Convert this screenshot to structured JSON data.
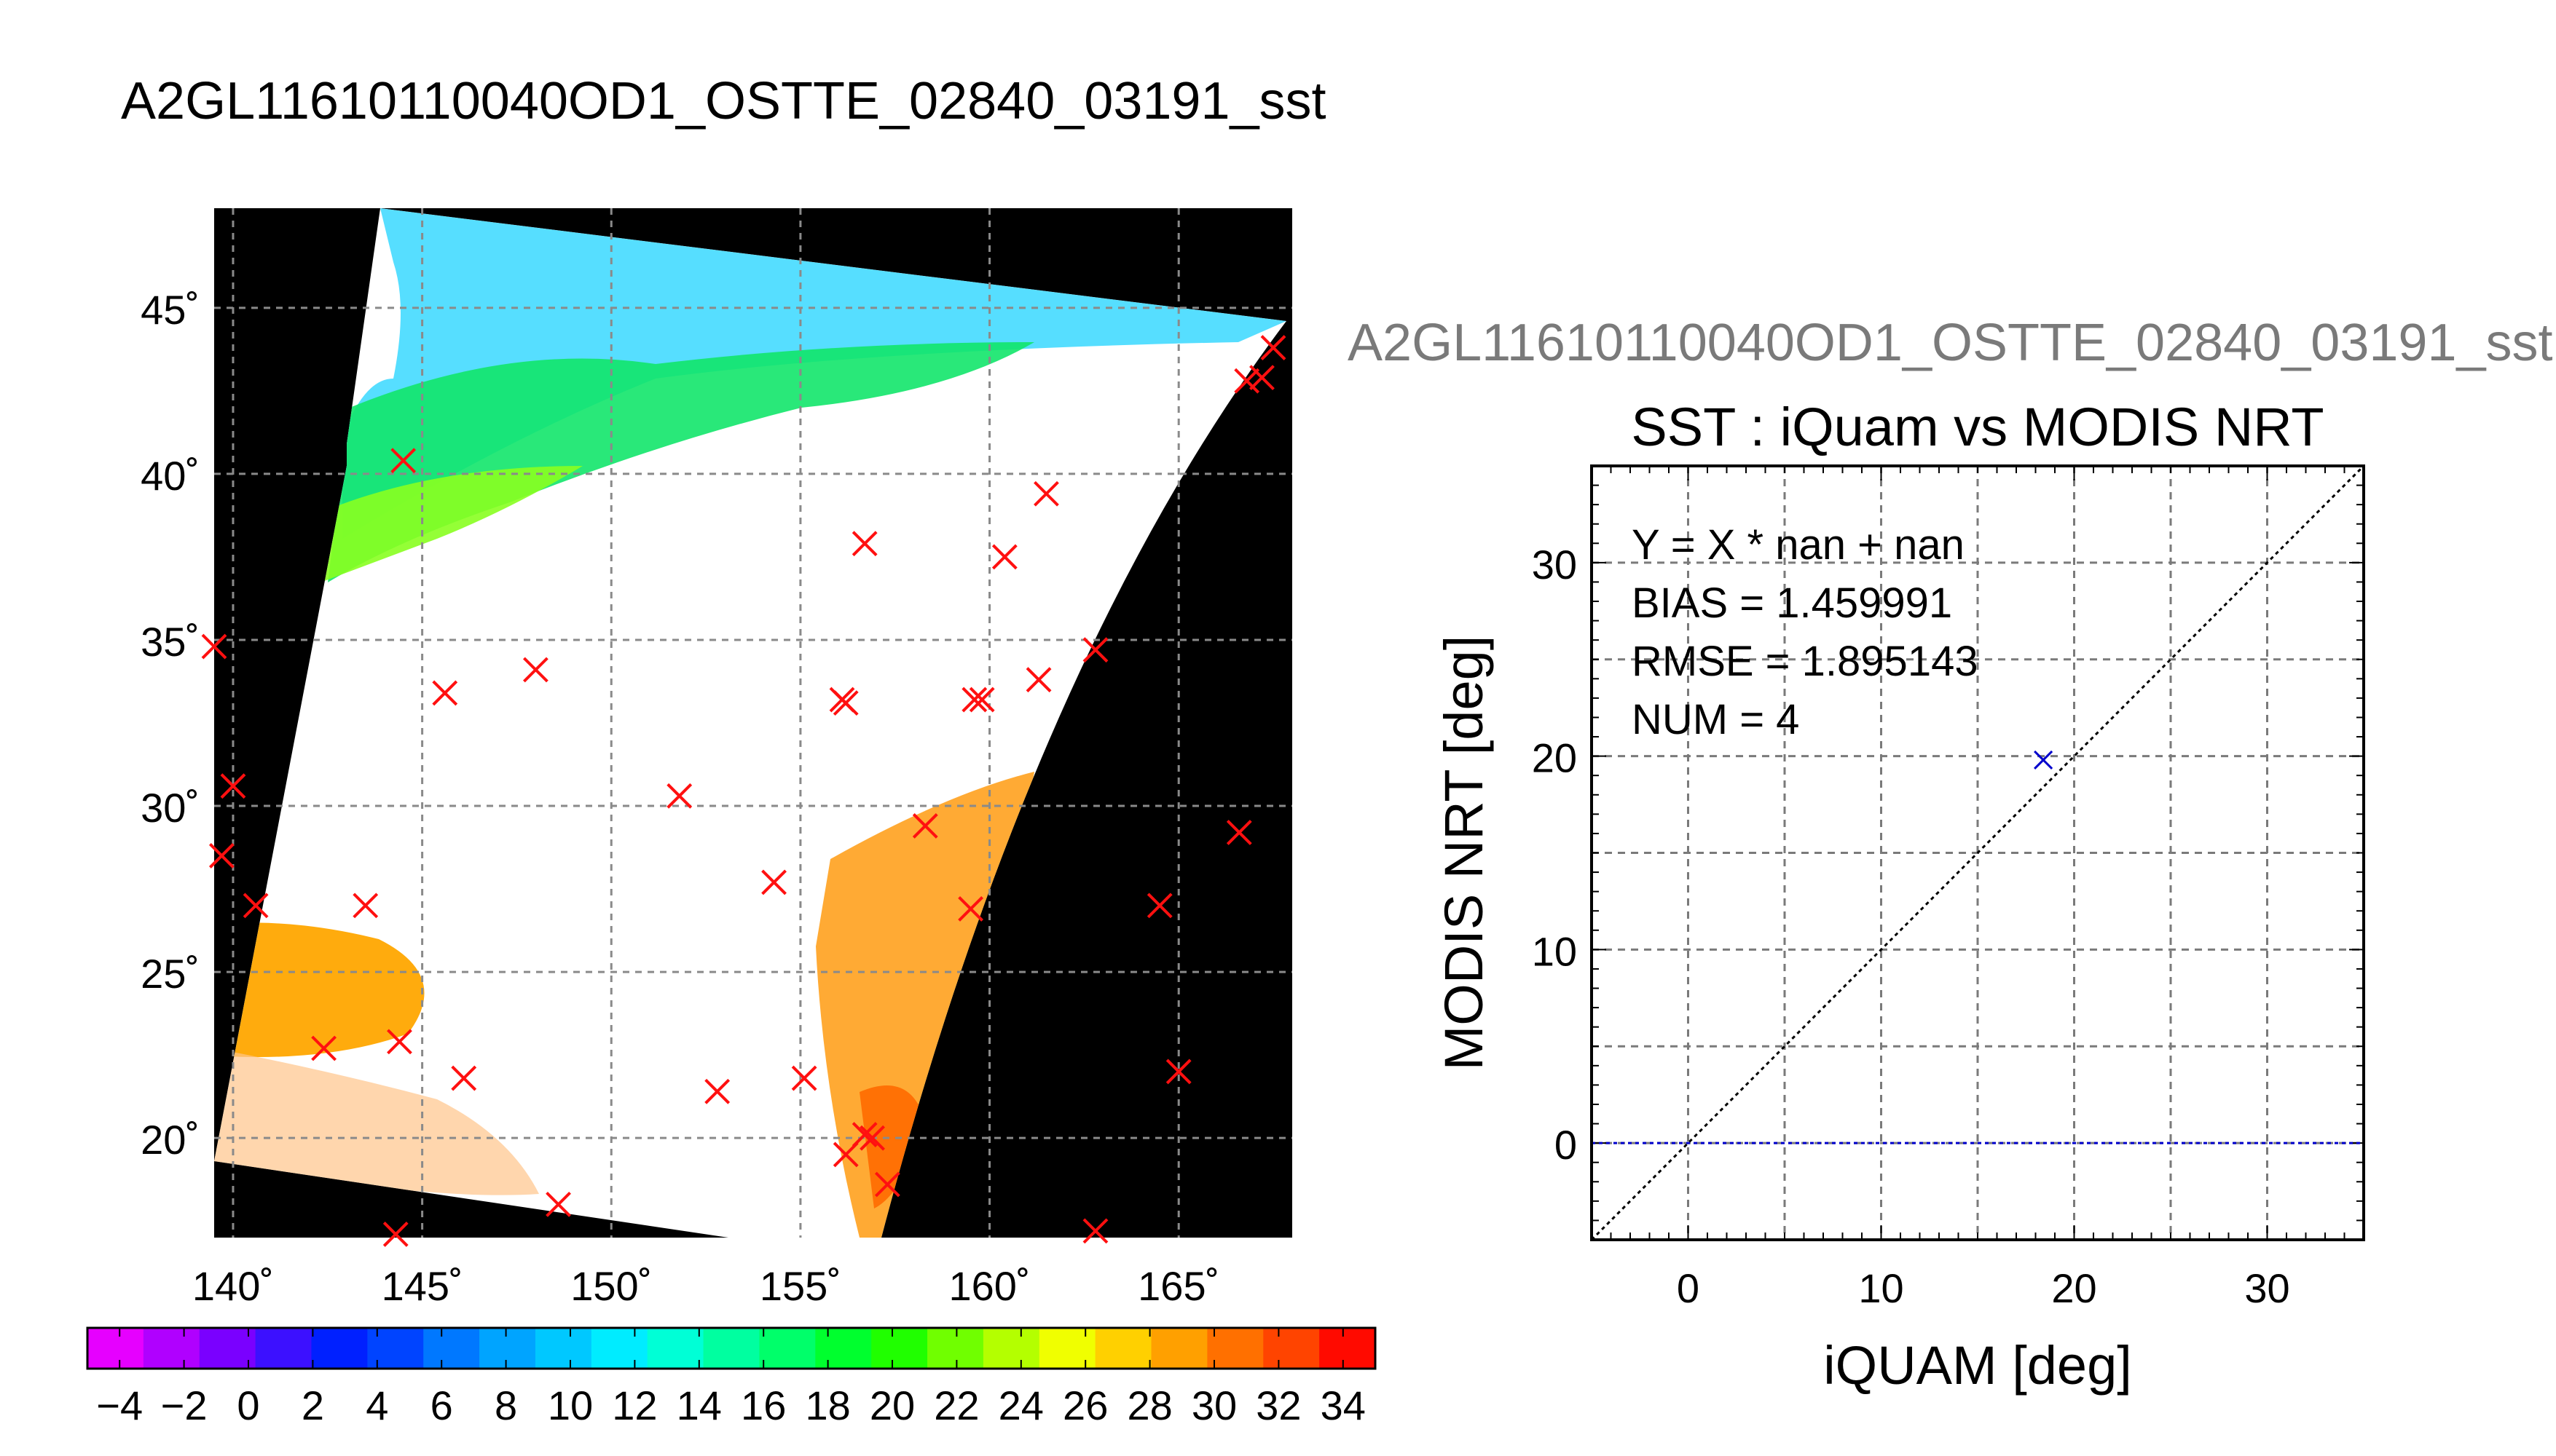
{
  "map_panel": {
    "title": "A2GL11610110040OD1_OSTTE_02840_03191_sst",
    "lat_ticks": [
      "20˚",
      "25˚",
      "30˚",
      "35˚",
      "40˚",
      "45˚"
    ],
    "lon_ticks": [
      "140˚",
      "145˚",
      "150˚",
      "155˚",
      "160˚",
      "165˚"
    ],
    "markers": [
      [
        144.5,
        40.4
      ],
      [
        145.6,
        33.4
      ],
      [
        148,
        34.1
      ],
      [
        151.8,
        30.3
      ],
      [
        156.7,
        37.9
      ],
      [
        160.4,
        37.5
      ],
      [
        161.5,
        39.4
      ],
      [
        156.1,
        33.2
      ],
      [
        156.2,
        33.1
      ],
      [
        159.8,
        33.2
      ],
      [
        159.6,
        33.2
      ],
      [
        161.3,
        33.8
      ],
      [
        162.8,
        34.7
      ],
      [
        139.5,
        34.8
      ],
      [
        140,
        30.6
      ],
      [
        139.7,
        28.5
      ],
      [
        140.6,
        27
      ],
      [
        143.5,
        27
      ],
      [
        142.4,
        22.7
      ],
      [
        144.4,
        22.9
      ],
      [
        146.1,
        21.8
      ],
      [
        152.8,
        21.4
      ],
      [
        154.3,
        27.7
      ],
      [
        155.1,
        21.8
      ],
      [
        156.2,
        19.5
      ],
      [
        156.7,
        20.1
      ],
      [
        156.9,
        20
      ],
      [
        157.3,
        18.6
      ],
      [
        158.3,
        29.4
      ],
      [
        159.5,
        26.9
      ],
      [
        144.3,
        17.1
      ],
      [
        148.6,
        18
      ],
      [
        162.8,
        17.2
      ],
      [
        164.5,
        27
      ],
      [
        165,
        22
      ],
      [
        166.6,
        29.2
      ],
      [
        166.8,
        42.8
      ],
      [
        167.2,
        42.9
      ],
      [
        167.5,
        43.8
      ]
    ],
    "colorbar": {
      "tick_labels": [
        "−4",
        "−2",
        "0",
        "2",
        "4",
        "6",
        "8",
        "10",
        "12",
        "14",
        "16",
        "18",
        "20",
        "22",
        "24",
        "26",
        "28",
        "30",
        "32",
        "34"
      ],
      "colors": [
        "#e600ff",
        "#b000ff",
        "#7a00ff",
        "#3c10ff",
        "#0020ff",
        "#0044ff",
        "#0078ff",
        "#00a4ff",
        "#00c8ff",
        "#00ecff",
        "#00ffd6",
        "#00ffa0",
        "#00ff6a",
        "#00ff2e",
        "#20ff00",
        "#70ff00",
        "#b4ff00",
        "#f0ff00",
        "#ffd000",
        "#ffa000",
        "#ff7000",
        "#ff4400",
        "#ff0a00"
      ]
    }
  },
  "scatter_panel": {
    "title_gray": "A2GL11610110040OD1_OSTTE_02840_03191_sst",
    "title": "SST : iQuam vs MODIS NRT",
    "xlabel": "iQUAM [deg]",
    "ylabel": "MODIS NRT [deg]",
    "stats": [
      "Y = X * nan + nan",
      "BIAS = 1.459991",
      "RMSE = 1.895143",
      "NUM = 4"
    ]
  },
  "chart_data": [
    {
      "type": "heatmap",
      "title": "A2GL11610110040OD1_OSTTE_02840_03191_sst",
      "xlim": [
        139.5,
        168
      ],
      "ylim": [
        17,
        48
      ],
      "x_ticks": [
        140,
        145,
        150,
        155,
        160,
        165
      ],
      "y_ticks": [
        20,
        25,
        30,
        35,
        40,
        45
      ],
      "colorbar_range": [
        -5,
        35
      ],
      "colorbar_ticks": [
        -4,
        -2,
        0,
        2,
        4,
        6,
        8,
        10,
        12,
        14,
        16,
        18,
        20,
        22,
        24,
        26,
        28,
        30,
        32,
        34
      ],
      "marker_count": 39,
      "grid": true
    },
    {
      "type": "scatter",
      "title": "SST : iQuam vs MODIS NRT",
      "xlabel": "iQUAM [deg]",
      "ylabel": "MODIS NRT [deg]",
      "xlim": [
        -5,
        35
      ],
      "ylim": [
        -5,
        35
      ],
      "x_ticks": [
        0,
        10,
        20,
        30
      ],
      "y_ticks": [
        0,
        10,
        20,
        30
      ],
      "points": [
        [
          18.4,
          19.8
        ]
      ],
      "reference_lines": [
        {
          "kind": "identity",
          "style": "dotted",
          "color": "#000000"
        },
        {
          "kind": "horizontal",
          "y": 0,
          "style": "dotted",
          "color": "#0000cc"
        }
      ],
      "grid": true
    }
  ]
}
